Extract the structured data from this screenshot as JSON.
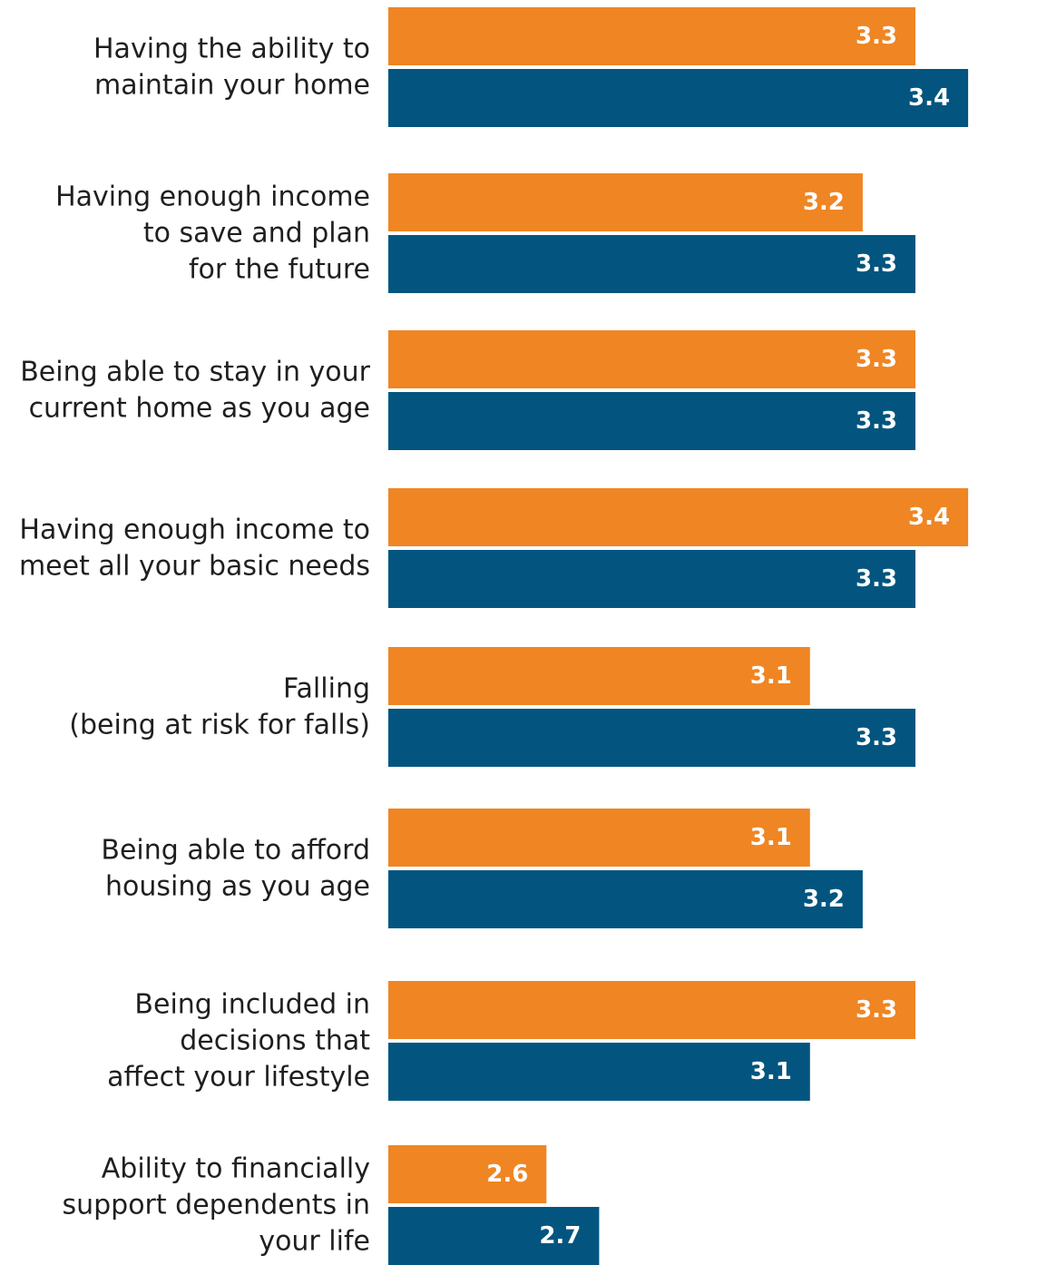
{
  "chart_data": {
    "type": "bar",
    "orientation": "horizontal",
    "categories": [
      [
        "Having the ability to",
        "maintain your home"
      ],
      [
        "Having enough income",
        "to save and plan",
        "for the future"
      ],
      [
        "Being able to stay in your",
        "current home as you age"
      ],
      [
        "Having enough income to",
        "meet all your basic needs"
      ],
      [
        "Falling",
        "(being at risk for falls)"
      ],
      [
        "Being able to afford",
        "housing as you age"
      ],
      [
        "Being included in",
        "decisions that",
        "affect your lifestyle"
      ],
      [
        "Ability to financially",
        "support dependents in",
        "your life"
      ]
    ],
    "series": [
      {
        "values": [
          3.3,
          3.2,
          3.3,
          3.4,
          3.1,
          3.1,
          3.3,
          2.6
        ],
        "value_labels": [
          "3.3",
          "3.2",
          "3.3",
          "3.4",
          "3.1",
          "3.1",
          "3.3",
          "2.6"
        ],
        "color": "#f08523"
      },
      {
        "values": [
          3.4,
          3.3,
          3.3,
          3.3,
          3.3,
          3.2,
          3.1,
          2.7
        ],
        "value_labels": [
          "3.4",
          "3.3",
          "3.3",
          "3.3",
          "3.3",
          "3.2",
          "3.1",
          "2.7"
        ],
        "color": "#03557f"
      }
    ],
    "grid": false,
    "legend": "none"
  }
}
